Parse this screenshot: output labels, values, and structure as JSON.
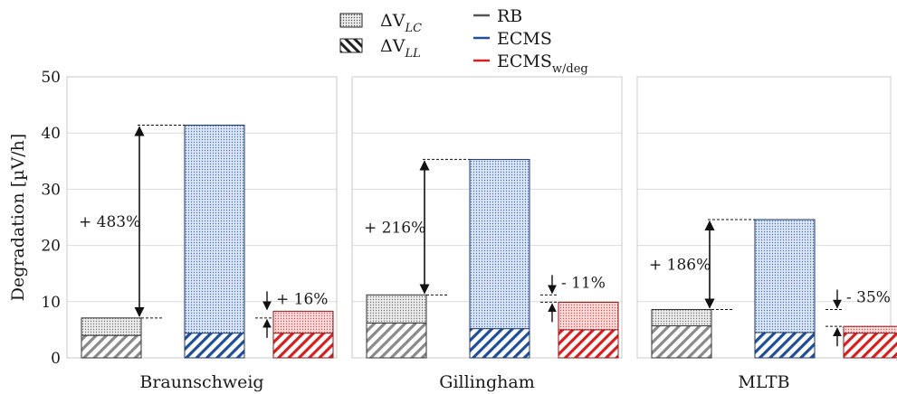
{
  "chart_data": {
    "type": "bar",
    "ylabel": "Degradation [µV/h]",
    "ylim": [
      0,
      50
    ],
    "yticks": [
      0,
      10,
      20,
      30,
      40,
      50
    ],
    "grid": true,
    "components": [
      {
        "key": "LC",
        "name_base": "ΔV",
        "name_sub": "LC",
        "pattern": "dotted",
        "position": "top"
      },
      {
        "key": "LL",
        "name_base": "ΔV",
        "name_sub": "LL",
        "pattern": "hatched",
        "position": "bottom"
      }
    ],
    "strategies": [
      {
        "name_base": "RB",
        "name_sub": "",
        "color": "#555555"
      },
      {
        "name_base": "ECMS",
        "name_sub": "",
        "color": "#1f4e9a"
      },
      {
        "name_base": "ECMS",
        "name_sub": "w/deg",
        "color": "#d62020"
      }
    ],
    "panels": [
      {
        "title": "Braunschweig",
        "bars": [
          {
            "strategy": "RB",
            "LL": 4.0,
            "LC": 3.1,
            "total": 7.1
          },
          {
            "strategy": "ECMS",
            "LL": 4.4,
            "LC": 37.0,
            "total": 41.4
          },
          {
            "strategy": "ECMS w/deg",
            "LL": 4.4,
            "LC": 3.9,
            "total": 8.3
          }
        ],
        "annotations": [
          {
            "label": "+ 483%",
            "from": 7.1,
            "to": 41.4,
            "between": "RB-ECMS"
          },
          {
            "label": "+ 16%",
            "from": 7.1,
            "to": 8.3,
            "between": "RB-ECMSw/deg"
          }
        ]
      },
      {
        "title": "Gillingham",
        "bars": [
          {
            "strategy": "RB",
            "LL": 6.2,
            "LC": 5.0,
            "total": 11.2
          },
          {
            "strategy": "ECMS",
            "LL": 5.2,
            "LC": 30.1,
            "total": 35.3
          },
          {
            "strategy": "ECMS w/deg",
            "LL": 5.0,
            "LC": 4.9,
            "total": 9.9
          }
        ],
        "annotations": [
          {
            "label": "+ 216%",
            "from": 11.2,
            "to": 35.3,
            "between": "RB-ECMS"
          },
          {
            "label": "- 11%",
            "from": 11.2,
            "to": 9.9,
            "between": "RB-ECMSw/deg"
          }
        ]
      },
      {
        "title": "MLTB",
        "bars": [
          {
            "strategy": "RB",
            "LL": 5.7,
            "LC": 2.9,
            "total": 8.6
          },
          {
            "strategy": "ECMS",
            "LL": 4.5,
            "LC": 20.1,
            "total": 24.6
          },
          {
            "strategy": "ECMS w/deg",
            "LL": 4.4,
            "LC": 1.2,
            "total": 5.6
          }
        ],
        "annotations": [
          {
            "label": "+ 186%",
            "from": 8.6,
            "to": 24.6,
            "between": "RB-ECMS"
          },
          {
            "label": "- 35%",
            "from": 8.6,
            "to": 5.6,
            "between": "RB-ECMSw/deg"
          }
        ]
      }
    ]
  }
}
